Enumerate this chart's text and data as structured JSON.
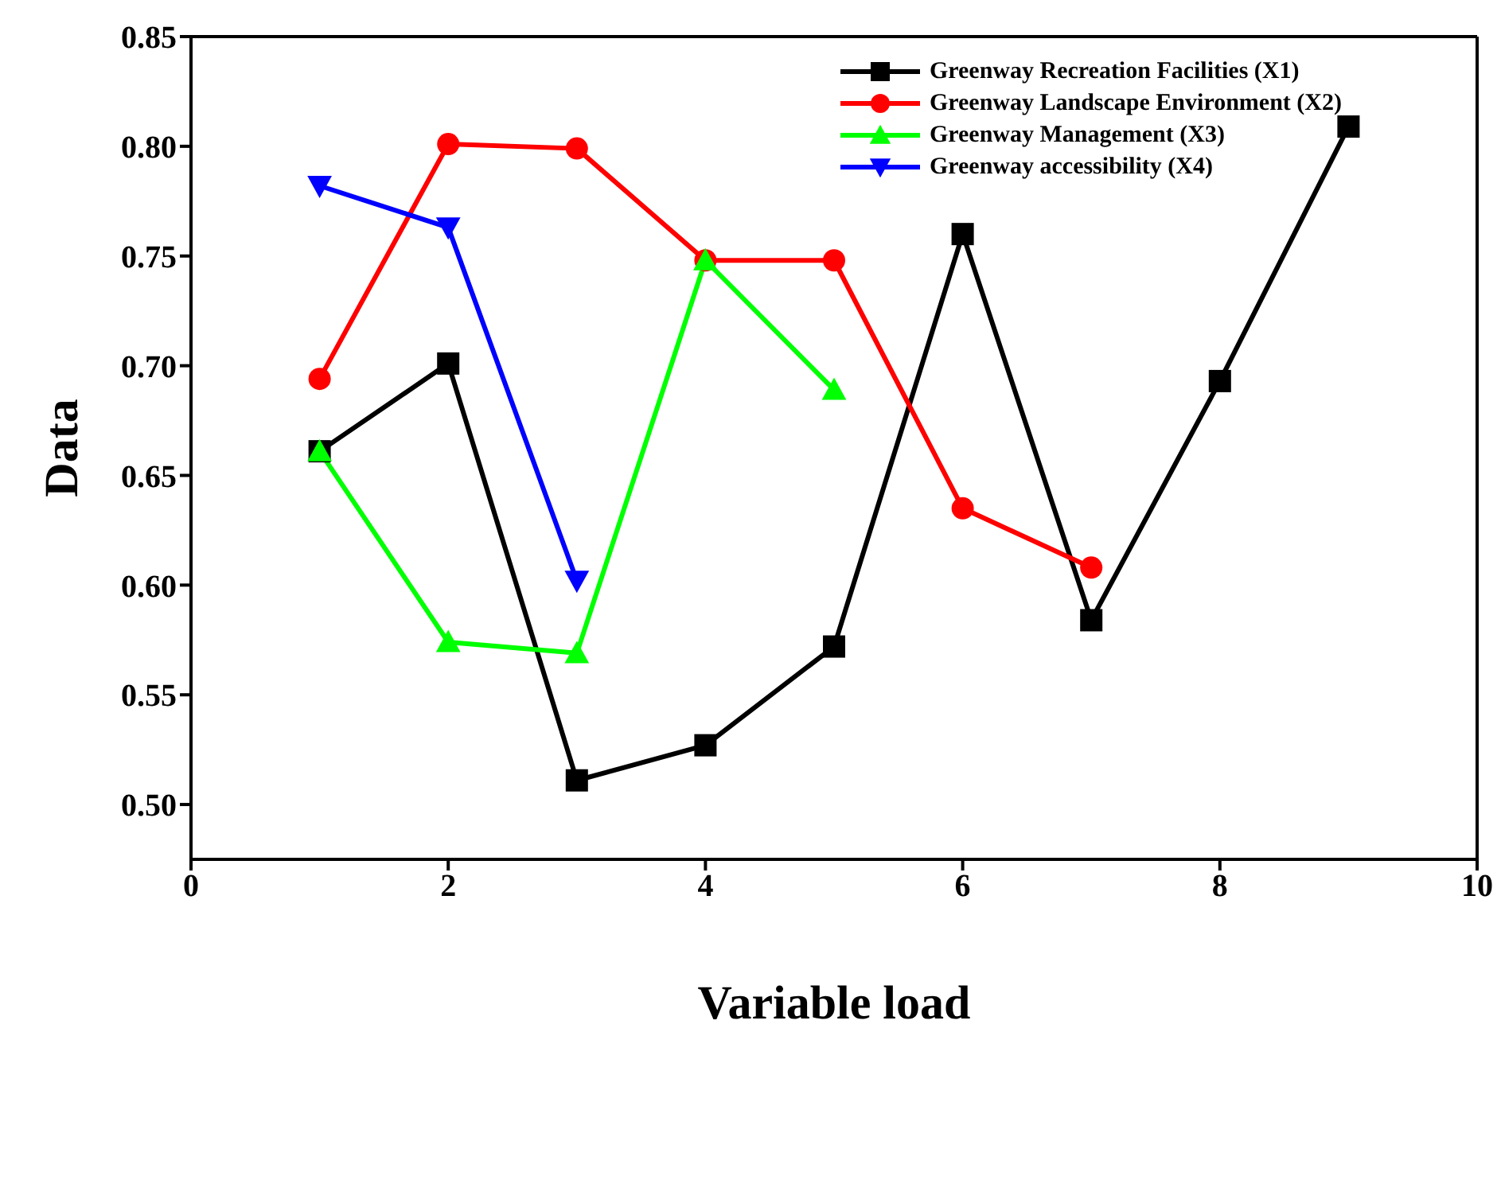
{
  "chart_data": {
    "type": "line",
    "xlabel": "Variable load",
    "ylabel": "Data",
    "xlim": [
      0,
      10
    ],
    "xticks": [
      0,
      2,
      4,
      6,
      8,
      10
    ],
    "ylim": [
      0.475,
      0.85
    ],
    "yticks": [
      {
        "value": 0.5,
        "label": "0.50"
      },
      {
        "value": 0.55,
        "label": "0.55"
      },
      {
        "value": 0.6,
        "label": "0.60"
      },
      {
        "value": 0.65,
        "label": "0.65"
      },
      {
        "value": 0.7,
        "label": "0.70"
      },
      {
        "value": 0.75,
        "label": "0.75"
      },
      {
        "value": 0.8,
        "label": "0.80"
      },
      {
        "value": 0.85,
        "label": "0.85"
      }
    ],
    "legend": "top right",
    "line_style": "solid",
    "series": [
      {
        "name": "Greenway Recreation Facilities (X1)",
        "color": "#000000",
        "marker": "square",
        "x": [
          1,
          2,
          3,
          4,
          5,
          6,
          7,
          8,
          9
        ],
        "values": [
          0.661,
          0.701,
          0.511,
          0.527,
          0.572,
          0.76,
          0.584,
          0.693,
          0.809
        ]
      },
      {
        "name": "Greenway Landscape Environment (X2)",
        "color": "#ff0000",
        "marker": "circle",
        "x": [
          1,
          2,
          3,
          4,
          5,
          6,
          7
        ],
        "values": [
          0.694,
          0.801,
          0.799,
          0.748,
          0.748,
          0.635,
          0.608
        ]
      },
      {
        "name": "Greenway Management (X3)",
        "color": "#00ff00",
        "marker": "triangle",
        "x": [
          1,
          2,
          3,
          4,
          5
        ],
        "values": [
          0.661,
          0.574,
          0.569,
          0.748,
          0.689
        ]
      },
      {
        "name": "Greenway accessibility (X4)",
        "color": "#0000ff",
        "marker": "triangle-down",
        "x": [
          1,
          2,
          3
        ],
        "values": [
          0.782,
          0.763,
          0.602
        ]
      }
    ]
  }
}
